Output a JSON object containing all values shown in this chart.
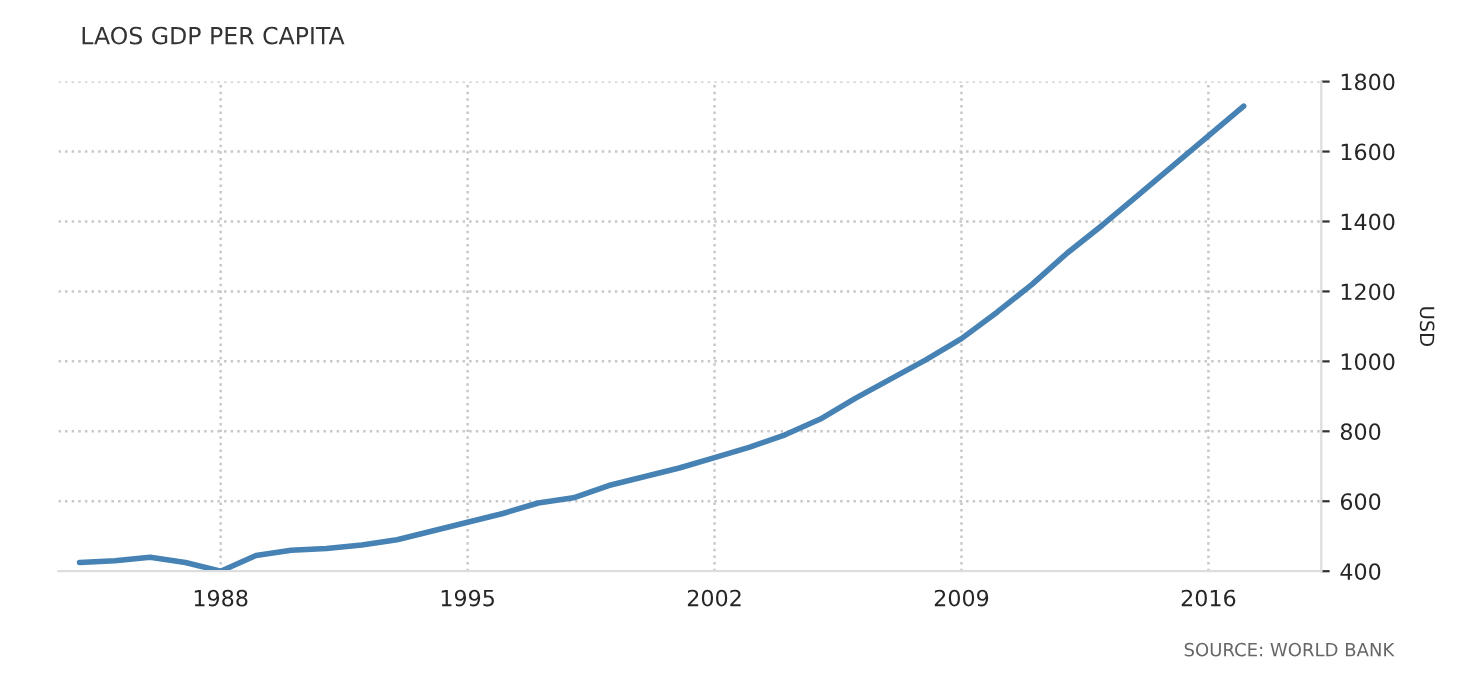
{
  "chart_data": {
    "type": "line",
    "title": "LAOS GDP PER CAPITA",
    "ylabel": "USD",
    "annotations": [
      "SOURCE: WORLD BANK"
    ],
    "x": [
      1984,
      1985,
      1986,
      1987,
      1988,
      1989,
      1990,
      1991,
      1992,
      1993,
      1994,
      1995,
      1996,
      1997,
      1998,
      1999,
      2000,
      2001,
      2002,
      2003,
      2004,
      2005,
      2006,
      2007,
      2008,
      2009,
      2010,
      2011,
      2012,
      2013,
      2014,
      2015,
      2016,
      2017
    ],
    "series": [
      {
        "color": "#4682b4",
        "values": [
          425,
          430,
          440,
          425,
          400,
          445,
          460,
          465,
          475,
          490,
          515,
          540,
          565,
          595,
          610,
          645,
          670,
          695,
          725,
          755,
          790,
          835,
          895,
          950,
          1005,
          1065,
          1140,
          1220,
          1310,
          1390,
          1475,
          1560,
          1645,
          1730
        ]
      }
    ],
    "xlim": [
      1983.4,
      2019.2
    ],
    "ylim": [
      400,
      1800
    ],
    "xticks": [
      1988,
      1995,
      2002,
      2009,
      2016
    ],
    "yticks": [
      400,
      600,
      800,
      1000,
      1200,
      1400,
      1600,
      1800
    ],
    "grid": true,
    "line_style": "solid",
    "marker": "none"
  }
}
